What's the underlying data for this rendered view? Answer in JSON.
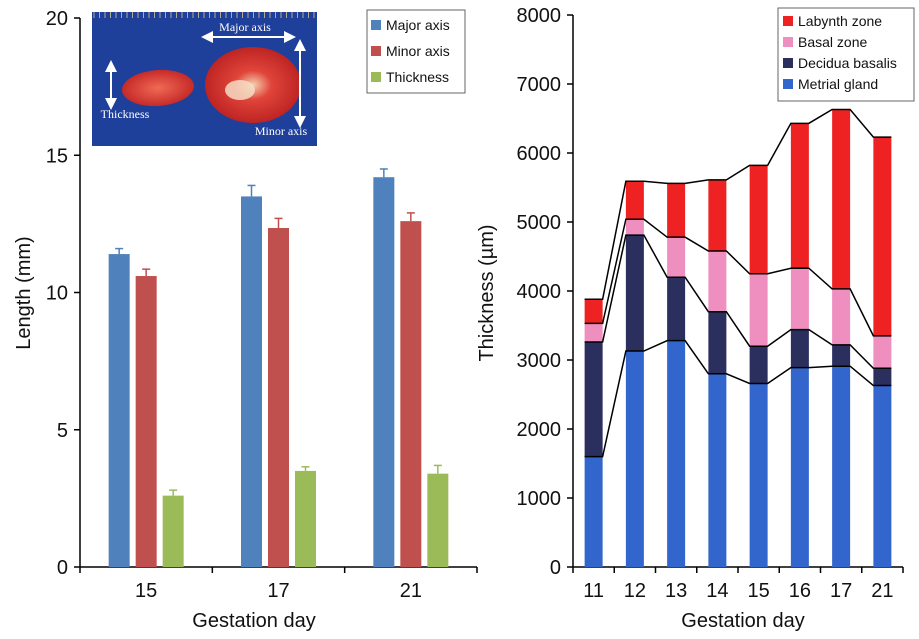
{
  "chart_data": [
    {
      "type": "bar",
      "categories": [
        "15",
        "17",
        "21"
      ],
      "series": [
        {
          "name": "Major axis",
          "values": [
            11.4,
            13.5,
            14.2
          ],
          "errors": [
            0.2,
            0.4,
            0.3
          ],
          "color": "#4f81bd"
        },
        {
          "name": "Minor axis",
          "values": [
            10.6,
            12.35,
            12.6
          ],
          "errors": [
            0.25,
            0.35,
            0.3
          ],
          "color": "#c0504d"
        },
        {
          "name": "Thickness",
          "values": [
            2.6,
            3.5,
            3.4
          ],
          "errors": [
            0.2,
            0.15,
            0.3
          ],
          "color": "#9bbb59"
        }
      ],
      "xlabel": "Gestation day",
      "ylabel": "Length (mm)",
      "ylim": [
        0,
        20
      ],
      "yticks": [
        "0",
        "5",
        "10",
        "15",
        "20"
      ],
      "legend_position": "top-right",
      "inset_photo": {
        "labels": [
          "Major axis",
          "Minor axis",
          "Thickness"
        ]
      }
    },
    {
      "type": "bar",
      "stacked": true,
      "categories": [
        "11",
        "12",
        "13",
        "14",
        "15",
        "16",
        "17",
        "21"
      ],
      "series": [
        {
          "name": "Metrial gland",
          "values": [
            1600,
            3130,
            3280,
            2800,
            2660,
            2890,
            2910,
            2630
          ],
          "color": "#3366cc"
        },
        {
          "name": "Decidua basalis",
          "values": [
            1660,
            1680,
            920,
            900,
            540,
            550,
            310,
            250
          ],
          "color": "#2b2f5e"
        },
        {
          "name": "Basal zone",
          "values": [
            270,
            230,
            580,
            880,
            1050,
            890,
            810,
            470
          ],
          "color": "#ee8fc0"
        },
        {
          "name": "Labynth zone",
          "values": [
            350,
            550,
            780,
            1030,
            1570,
            2100,
            2600,
            2880
          ],
          "color": "#ee2222"
        }
      ],
      "legend_order": [
        "Labynth zone",
        "Basal zone",
        "Decidua basalis",
        "Metrial gland"
      ],
      "xlabel": "Gestation day",
      "ylabel": "Thickness (µm)",
      "ylim": [
        0,
        8000
      ],
      "yticks": [
        "0",
        "1000",
        "2000",
        "3000",
        "4000",
        "5000",
        "6000",
        "7000",
        "8000"
      ],
      "legend_position": "top-right",
      "connector_lines": true
    }
  ]
}
